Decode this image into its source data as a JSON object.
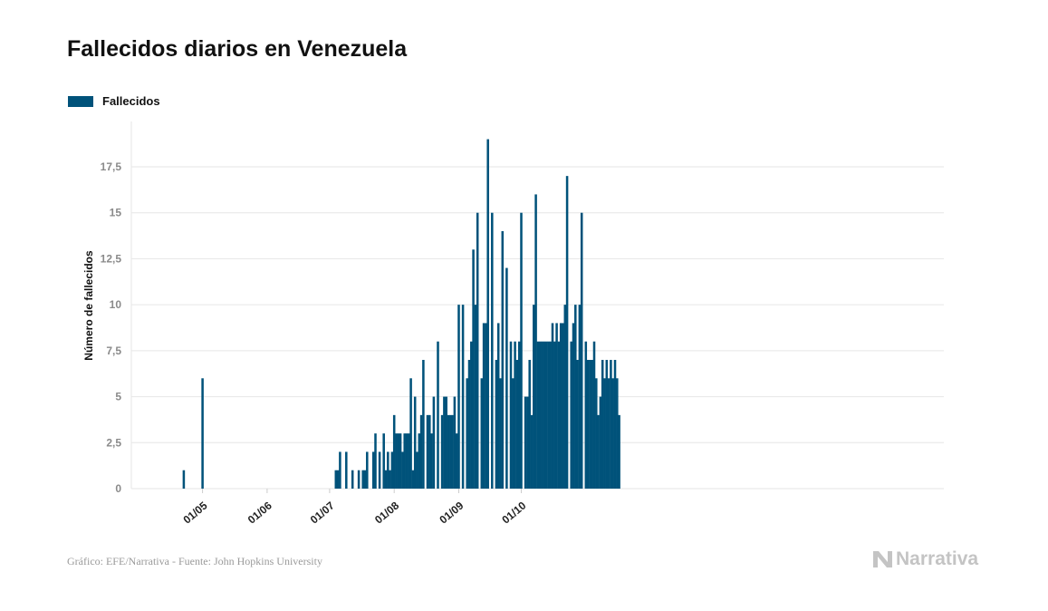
{
  "title": "Fallecidos diarios en Venezuela",
  "source": "Gráfico: EFE/Narrativa - Fuente: John Hopkins University",
  "brand": "Narrativa",
  "colors": {
    "bar": "#00527a",
    "grid": "#e6e6e6",
    "brand": "#c4c4c4"
  },
  "chart_data": {
    "type": "bar",
    "ylabel": "Número de fallecidos",
    "ylim": [
      0,
      19
    ],
    "yticks": [
      0,
      2.5,
      5,
      7.5,
      10,
      12.5,
      15,
      17.5
    ],
    "ytick_labels": [
      "0",
      "2,5",
      "5",
      "7,5",
      "10",
      "12,5",
      "15",
      "17,5"
    ],
    "xticks": [
      {
        "date": "2020-05-01",
        "label": "01/05"
      },
      {
        "date": "2020-06-01",
        "label": "01/06"
      },
      {
        "date": "2020-07-01",
        "label": "01/07"
      },
      {
        "date": "2020-08-01",
        "label": "01/08"
      },
      {
        "date": "2020-09-01",
        "label": "01/09"
      },
      {
        "date": "2020-10-01",
        "label": "01/10"
      }
    ],
    "x_start": "2020-04-14",
    "grid": "horizontal",
    "legend": "top-left",
    "series": [
      {
        "name": "Fallecidos",
        "values": [
          0,
          0,
          0,
          0,
          0,
          0,
          0,
          0,
          1,
          0,
          0,
          0,
          0,
          0,
          0,
          0,
          0,
          6,
          0,
          0,
          0,
          0,
          0,
          0,
          0,
          0,
          0,
          0,
          0,
          0,
          0,
          0,
          0,
          0,
          0,
          0,
          0,
          0,
          0,
          0,
          0,
          0,
          0,
          0,
          0,
          0,
          0,
          0,
          0,
          0,
          0,
          0,
          0,
          0,
          0,
          0,
          0,
          0,
          0,
          0,
          0,
          0,
          0,
          0,
          0,
          0,
          0,
          0,
          0,
          0,
          0,
          0,
          0,
          0,
          0,
          0,
          0,
          0,
          0,
          0,
          0,
          1,
          1,
          2,
          0,
          0,
          2,
          0,
          0,
          1,
          0,
          0,
          1,
          0,
          1,
          1,
          2,
          0,
          0,
          2,
          3,
          0,
          2,
          0,
          3,
          1,
          2,
          1,
          2,
          4,
          3,
          3,
          3,
          2,
          3,
          3,
          3,
          6,
          1,
          5,
          2,
          3,
          4,
          7,
          0,
          4,
          4,
          3,
          5,
          0,
          8,
          0,
          4,
          5,
          5,
          4,
          4,
          4,
          5,
          3,
          10,
          0,
          10,
          0,
          6,
          7,
          8,
          13,
          10,
          15,
          0,
          6,
          9,
          9,
          19,
          0,
          15,
          0,
          7,
          9,
          6,
          14,
          0,
          12,
          0,
          8,
          6,
          8,
          7,
          8,
          15,
          0,
          5,
          5,
          7,
          4,
          10,
          16,
          8,
          8,
          8,
          8,
          8,
          8,
          8,
          9,
          8,
          9,
          8,
          9,
          9,
          10,
          17,
          0,
          8,
          9,
          10,
          7,
          10,
          15,
          0,
          8,
          7,
          7,
          7,
          8,
          6,
          4,
          5,
          7,
          6,
          7,
          6,
          7,
          6,
          7,
          6,
          4
        ]
      }
    ]
  }
}
